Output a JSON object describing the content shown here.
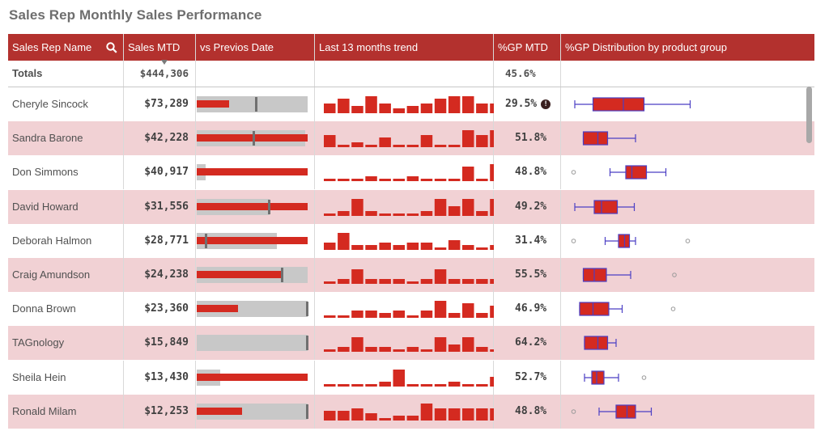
{
  "title": "Sales Rep Monthly Sales Performance",
  "columns": {
    "name": "Sales Rep Name",
    "sales": "Sales MTD",
    "vs": "vs Previos Date",
    "trend": "Last 13 months trend",
    "gp": "%GP MTD",
    "dist": "%GP Distribution by product group"
  },
  "icons": {
    "search": "search-icon",
    "warning": "warning-icon",
    "sort": "sort-indicator-icon"
  },
  "colors": {
    "header": "#b3312e",
    "bar": "#d42a20",
    "row_alt": "#f1d1d4",
    "box_whisker": "#4b3fc4"
  },
  "totals": {
    "label": "Totals",
    "sales": "$444,306",
    "gp": "45.6%"
  },
  "chart_data": {
    "type": "table",
    "rows": [
      {
        "name": "Cheryle Sincock",
        "sales": "$73,289",
        "gp": "29.5%",
        "warning": true,
        "vs": {
          "bar": 0.29,
          "target": 0.53,
          "band": 1.0
        },
        "trend": [
          4,
          6,
          3,
          7,
          4,
          2,
          3,
          4,
          6,
          7,
          7,
          4,
          4
        ],
        "dist": {
          "wmin": 0.02,
          "q1": 0.17,
          "med": 0.42,
          "q3": 0.59,
          "wmax": 0.97,
          "outliers": []
        }
      },
      {
        "name": "Sandra Barone",
        "sales": "$42,228",
        "gp": "51.8%",
        "vs": {
          "bar": 1.0,
          "target": 0.51,
          "band": 0.98
        },
        "trend": [
          5,
          1,
          2,
          1,
          4,
          1,
          1,
          5,
          1,
          1,
          7,
          5,
          7
        ],
        "dist": {
          "wmin": 0.09,
          "q1": 0.09,
          "med": 0.21,
          "q3": 0.29,
          "wmax": 0.52,
          "outliers": []
        }
      },
      {
        "name": "Don Simmons",
        "sales": "$40,917",
        "gp": "48.8%",
        "vs": {
          "bar": 1.0,
          "target": null,
          "band": 0.08
        },
        "trend": [
          1,
          1,
          1,
          2,
          1,
          1,
          2,
          1,
          1,
          1,
          6,
          1,
          7
        ],
        "dist": {
          "wmin": 0.31,
          "q1": 0.44,
          "med": 0.49,
          "q3": 0.61,
          "wmax": 0.77,
          "outliers": [
            0.01
          ]
        }
      },
      {
        "name": "David Howard",
        "sales": "$31,556",
        "gp": "49.2%",
        "vs": {
          "bar": 1.0,
          "target": 0.65,
          "band": 0.66
        },
        "trend": [
          1,
          2,
          7,
          2,
          1,
          1,
          1,
          2,
          7,
          4,
          7,
          2,
          7
        ],
        "dist": {
          "wmin": 0.02,
          "q1": 0.18,
          "med": 0.24,
          "q3": 0.37,
          "wmax": 0.51,
          "outliers": []
        }
      },
      {
        "name": "Deborah Halmon",
        "sales": "$28,771",
        "gp": "31.4%",
        "vs": {
          "bar": 1.0,
          "target": 0.08,
          "band": 0.72
        },
        "trend": [
          3,
          7,
          2,
          2,
          3,
          2,
          3,
          3,
          1,
          4,
          2,
          1,
          2
        ],
        "dist": {
          "wmin": 0.27,
          "q1": 0.38,
          "med": 0.43,
          "q3": 0.47,
          "wmax": 0.52,
          "outliers": [
            0.01,
            0.95
          ]
        }
      },
      {
        "name": "Craig Amundson",
        "sales": "$24,238",
        "gp": "55.5%",
        "vs": {
          "bar": 0.76,
          "target": 0.77,
          "band": 1.0
        },
        "trend": [
          1,
          2,
          6,
          2,
          2,
          2,
          1,
          2,
          6,
          2,
          2,
          2,
          2
        ],
        "dist": {
          "wmin": 0.09,
          "q1": 0.09,
          "med": 0.18,
          "q3": 0.28,
          "wmax": 0.48,
          "outliers": [
            0.84
          ]
        }
      },
      {
        "name": "Donna Brown",
        "sales": "$23,360",
        "gp": "46.9%",
        "vs": {
          "bar": 0.37,
          "target": 0.99,
          "band": 1.0
        },
        "trend": [
          1,
          1,
          3,
          3,
          2,
          3,
          1,
          3,
          7,
          2,
          6,
          2,
          5
        ],
        "dist": {
          "wmin": 0.06,
          "q1": 0.06,
          "med": 0.17,
          "q3": 0.3,
          "wmax": 0.41,
          "outliers": [
            0.83
          ]
        }
      },
      {
        "name": "TAGnology",
        "sales": "$15,849",
        "gp": "64.2%",
        "vs": {
          "bar": 0.0,
          "target": 0.99,
          "band": 1.0
        },
        "trend": [
          1,
          2,
          6,
          2,
          2,
          1,
          2,
          1,
          6,
          3,
          6,
          2,
          1
        ],
        "dist": {
          "wmin": 0.1,
          "q1": 0.1,
          "med": 0.21,
          "q3": 0.29,
          "wmax": 0.36,
          "outliers": []
        }
      },
      {
        "name": "Sheila Hein",
        "sales": "$13,430",
        "gp": "52.7%",
        "vs": {
          "bar": 1.0,
          "target": null,
          "band": 0.21
        },
        "trend": [
          1,
          1,
          1,
          1,
          2,
          7,
          1,
          1,
          1,
          2,
          1,
          1,
          4
        ],
        "dist": {
          "wmin": 0.1,
          "q1": 0.16,
          "med": 0.2,
          "q3": 0.26,
          "wmax": 0.38,
          "outliers": [
            0.59
          ]
        }
      },
      {
        "name": "Ronald Milam",
        "sales": "$12,253",
        "gp": "48.8%",
        "vs": {
          "bar": 0.41,
          "target": 0.99,
          "band": 1.0
        },
        "trend": [
          4,
          4,
          5,
          3,
          1,
          2,
          2,
          7,
          5,
          5,
          5,
          5,
          5
        ],
        "dist": {
          "wmin": 0.22,
          "q1": 0.36,
          "med": 0.45,
          "q3": 0.52,
          "wmax": 0.65,
          "outliers": [
            0.01
          ]
        }
      }
    ]
  }
}
